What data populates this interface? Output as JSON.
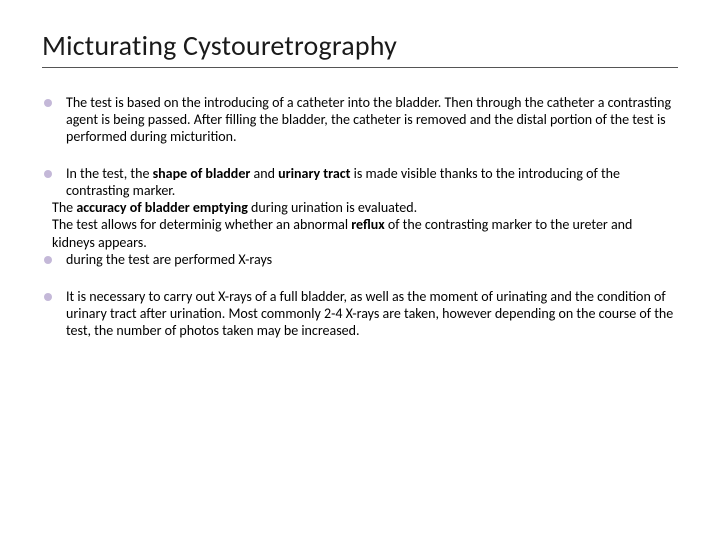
{
  "title": "Micturating Cystouretrography",
  "bullet_color": "#c4b8d8",
  "text_color": "#000000",
  "title_color": "#1a1a1a",
  "bullets": {
    "b1": "The test is based on the introducing of a catheter into the bladder. Then through the catheter a contrasting agent is being passed. After filling the bladder, the catheter is removed and the distal portion of the test is performed during micturition.",
    "b2_pre": "In the test, the ",
    "b2_bold1": "shape of bladder ",
    "b2_mid1": "and ",
    "b2_bold2": "urinary tract ",
    "b2_post": "is made visible thanks to the introducing of the contrasting marker.",
    "b2c1_pre": "The ",
    "b2c1_bold": "accuracy of bladder emptying ",
    "b2c1_post": "during urination is evaluated.",
    "b2c2_pre": "The test allows for determinig whether an abnormal ",
    "b2c2_bold": "reflux ",
    "b2c2_post": "of the contrasting marker to the ureter and kidneys appears.",
    "b3": "during the test are performed X-rays",
    "b4": "It is necessary to carry out  X-rays of a full bladder, as well as the moment of urinating and the condition of urinary tract after urination. Most commonly 2-4 X-rays are taken, however depending on the course of the test, the number of photos taken may be increased."
  }
}
